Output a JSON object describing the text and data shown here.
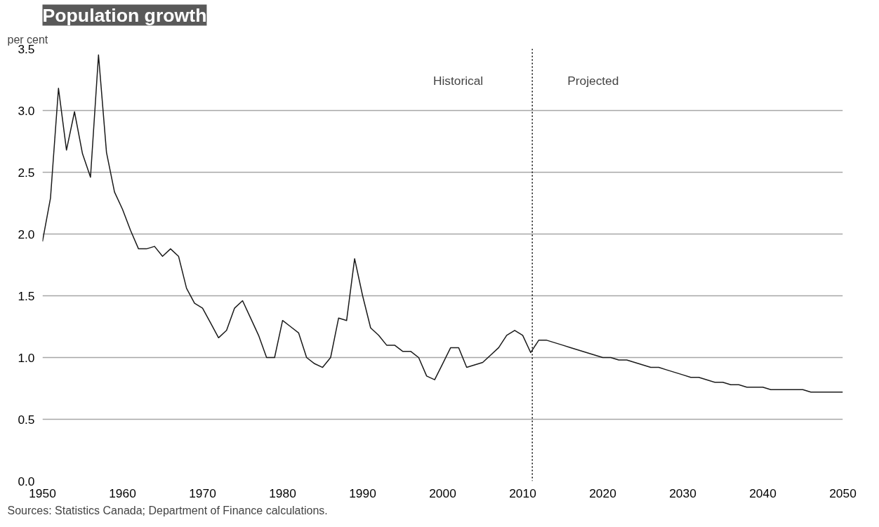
{
  "chart_data": {
    "type": "line",
    "title": "Population growth",
    "ylabel": "per cent",
    "x": [
      1950,
      1951,
      1952,
      1953,
      1954,
      1955,
      1956,
      1957,
      1958,
      1959,
      1960,
      1961,
      1962,
      1963,
      1964,
      1965,
      1966,
      1967,
      1968,
      1969,
      1970,
      1971,
      1972,
      1973,
      1974,
      1975,
      1976,
      1977,
      1978,
      1979,
      1980,
      1981,
      1982,
      1983,
      1984,
      1985,
      1986,
      1987,
      1988,
      1989,
      1990,
      1991,
      1992,
      1993,
      1994,
      1995,
      1996,
      1997,
      1998,
      1999,
      2000,
      2001,
      2002,
      2003,
      2004,
      2005,
      2006,
      2007,
      2008,
      2009,
      2010,
      2011,
      2012,
      2013,
      2014,
      2015,
      2016,
      2017,
      2018,
      2019,
      2020,
      2021,
      2022,
      2023,
      2024,
      2025,
      2026,
      2027,
      2028,
      2029,
      2030,
      2031,
      2032,
      2033,
      2034,
      2035,
      2036,
      2037,
      2038,
      2039,
      2040,
      2041,
      2042,
      2043,
      2044,
      2045,
      2046,
      2047,
      2048,
      2049,
      2050
    ],
    "series": [
      {
        "color": "#1a1a1a",
        "values": [
          1.94,
          2.29,
          3.18,
          2.68,
          2.99,
          2.65,
          2.46,
          3.45,
          2.66,
          2.34,
          2.2,
          2.03,
          1.88,
          1.88,
          1.9,
          1.82,
          1.88,
          1.82,
          1.56,
          1.44,
          1.4,
          1.28,
          1.16,
          1.22,
          1.4,
          1.46,
          1.32,
          1.18,
          1.0,
          1.0,
          1.3,
          1.25,
          1.2,
          1.0,
          0.95,
          0.92,
          1.0,
          1.32,
          1.3,
          1.8,
          1.5,
          1.24,
          1.18,
          1.1,
          1.1,
          1.05,
          1.05,
          1.0,
          0.85,
          0.82,
          0.95,
          1.08,
          1.08,
          0.92,
          0.94,
          0.96,
          1.02,
          1.08,
          1.18,
          1.22,
          1.18,
          1.04,
          1.14,
          1.14,
          1.12,
          1.1,
          1.08,
          1.06,
          1.04,
          1.02,
          1.0,
          1.0,
          0.98,
          0.98,
          0.96,
          0.94,
          0.92,
          0.92,
          0.9,
          0.88,
          0.86,
          0.84,
          0.84,
          0.82,
          0.8,
          0.8,
          0.78,
          0.78,
          0.76,
          0.76,
          0.76,
          0.74,
          0.74,
          0.74,
          0.74,
          0.74,
          0.72,
          0.72,
          0.72,
          0.72,
          0.72
        ]
      }
    ],
    "xlim": [
      1950,
      2050
    ],
    "xticks": [
      1950,
      1960,
      1970,
      1980,
      1990,
      2000,
      2010,
      2020,
      2030,
      2040,
      2050
    ],
    "ylim": [
      0,
      3.5
    ],
    "yticks": [
      {
        "value": 0,
        "label": "0.0"
      },
      {
        "value": 0.5,
        "label": "0.5"
      },
      {
        "value": 1,
        "label": "1.0"
      },
      {
        "value": 1.5,
        "label": "1.5"
      },
      {
        "value": 2,
        "label": "2.0"
      },
      {
        "value": 2.5,
        "label": "2.5"
      },
      {
        "value": 3,
        "label": "3.0"
      },
      {
        "value": 3.5,
        "label": "3.5"
      }
    ],
    "grid": "y",
    "ref_lines": [
      {
        "axis": "x",
        "value": 2011.2,
        "color": "#000000",
        "line_style": "dotted"
      }
    ],
    "annotations": [
      "Historical",
      "Projected",
      "Sources: Statistics Canada; Department of Finance calculations."
    ]
  }
}
